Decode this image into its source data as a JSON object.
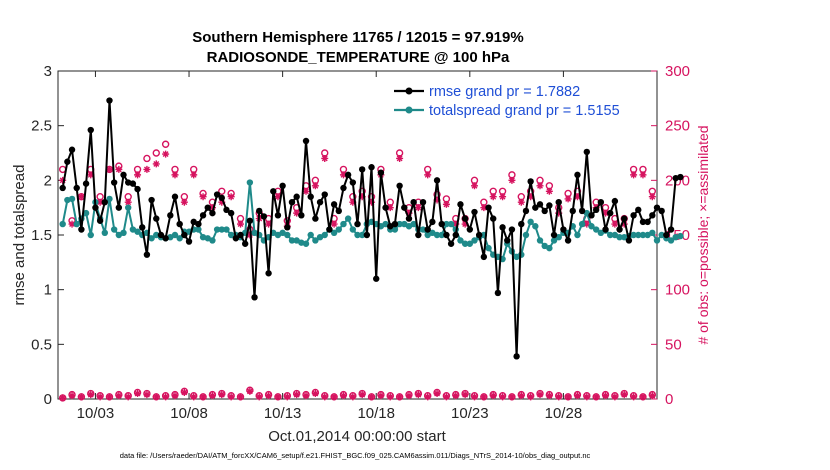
{
  "chart_data": {
    "type": "line",
    "title_line1": "Southern Hemisphere 11765 / 12015 = 97.919%",
    "title_line2": "RADIOSONDE_TEMPERATURE @ 100 hPa",
    "ylabel_left": "rmse and totalspread",
    "ylabel_right": "# of obs: o=possible; ×=assimilated",
    "xlabel": "Oct.01,2014 00:00:00 start",
    "footnote": "data file: /Users/raeder/DAI/ATM_forcXX/CAM6_setup/f.e21.FHIST_BGC.f09_025.CAM6assim.011/Diags_NTrS_2014-10/obs_diag_output.nc",
    "ylim_left": [
      0,
      3
    ],
    "ylim_right": [
      0,
      300
    ],
    "yticks_left": [
      "0",
      "0.5",
      "1",
      "1.5",
      "2",
      "2.5",
      "3"
    ],
    "yticks_right": [
      "0",
      "50",
      "100",
      "150",
      "200",
      "250",
      "300"
    ],
    "xlim": [
      1.0,
      33.0
    ],
    "xticks": [
      {
        "value": 3,
        "label": "10/03"
      },
      {
        "value": 8,
        "label": "10/08"
      },
      {
        "value": 13,
        "label": "10/13"
      },
      {
        "value": 18,
        "label": "10/18"
      },
      {
        "value": 23,
        "label": "10/23"
      },
      {
        "value": 28,
        "label": "10/28"
      }
    ],
    "x_start": 1.25,
    "x_step": 0.25,
    "series": [
      {
        "name": "rmse",
        "legend": "rmse grand pr = 1.7882",
        "color": "#000000",
        "values": [
          1.93,
          2.17,
          2.28,
          1.93,
          1.55,
          1.97,
          2.46,
          1.75,
          1.63,
          1.8,
          2.73,
          1.98,
          1.75,
          2.05,
          1.98,
          1.97,
          1.92,
          1.57,
          1.32,
          1.82,
          1.65,
          1.5,
          1.47,
          1.68,
          1.85,
          1.6,
          1.5,
          1.44,
          1.62,
          1.6,
          1.68,
          1.75,
          1.7,
          1.87,
          1.84,
          1.73,
          1.7,
          1.47,
          1.5,
          1.42,
          1.63,
          0.93,
          1.72,
          1.67,
          1.15,
          1.9,
          1.68,
          1.95,
          1.57,
          1.8,
          1.85,
          1.68,
          2.36,
          1.85,
          1.65,
          1.8,
          1.87,
          1.55,
          1.78,
          1.72,
          1.93,
          2.05,
          1.98,
          1.6,
          2.1,
          1.5,
          2.12,
          1.1,
          2.07,
          1.75,
          1.58,
          1.6,
          1.95,
          1.75,
          1.65,
          1.8,
          1.5,
          1.8,
          1.55,
          1.62,
          2.0,
          1.6,
          1.5,
          1.42,
          1.5,
          1.78,
          1.65,
          1.55,
          1.71,
          1.5,
          1.3,
          1.75,
          1.65,
          0.97,
          1.57,
          1.45,
          1.55,
          0.39,
          1.6,
          1.72,
          1.99,
          1.75,
          1.78,
          1.72,
          1.77,
          1.5,
          1.8,
          1.55,
          1.45,
          1.72,
          2.05,
          1.72,
          2.26,
          1.68,
          1.73,
          1.8,
          1.55,
          1.7,
          1.81,
          1.55,
          1.65,
          1.45,
          1.68,
          1.73,
          1.62,
          1.62,
          1.68,
          1.75,
          1.72,
          1.5,
          1.55,
          2.02,
          2.03
        ]
      },
      {
        "name": "totalspread",
        "legend": "totalspread grand pr = 1.5155",
        "color": "#1f8a8a",
        "values": [
          1.6,
          1.82,
          1.83,
          1.6,
          1.65,
          1.7,
          1.5,
          1.8,
          1.65,
          1.52,
          1.83,
          1.55,
          1.5,
          1.52,
          1.75,
          1.55,
          1.53,
          1.5,
          1.52,
          1.47,
          1.5,
          1.48,
          1.47,
          1.48,
          1.5,
          1.47,
          1.53,
          1.53,
          1.55,
          1.55,
          1.48,
          1.47,
          1.45,
          1.55,
          1.55,
          1.55,
          1.5,
          1.5,
          1.48,
          1.52,
          1.98,
          1.52,
          1.5,
          1.45,
          1.48,
          1.52,
          1.5,
          1.52,
          1.5,
          1.45,
          1.45,
          1.43,
          1.42,
          1.5,
          1.45,
          1.48,
          1.5,
          1.55,
          1.52,
          1.55,
          1.6,
          1.65,
          1.55,
          1.5,
          1.5,
          1.6,
          1.62,
          1.6,
          1.58,
          1.6,
          1.55,
          1.55,
          1.6,
          1.6,
          1.58,
          1.6,
          1.55,
          1.55,
          1.5,
          1.52,
          1.5,
          1.5,
          1.6,
          1.6,
          1.55,
          1.45,
          1.42,
          1.42,
          1.45,
          1.48,
          1.5,
          1.38,
          1.32,
          1.3,
          1.28,
          1.42,
          1.35,
          1.3,
          1.32,
          1.5,
          1.62,
          1.58,
          1.45,
          1.4,
          1.38,
          1.45,
          1.48,
          1.52,
          1.52,
          1.58,
          1.5,
          1.6,
          1.7,
          1.58,
          1.55,
          1.52,
          1.54,
          1.5,
          1.5,
          1.48,
          1.48,
          1.49,
          1.5,
          1.5,
          1.5,
          1.5,
          1.52,
          1.45,
          1.5,
          1.47,
          1.45,
          1.48,
          1.49
        ]
      }
    ],
    "obs_counts": {
      "color": "#d6135f",
      "x_step": 0.5,
      "possible": [
        210,
        163,
        185,
        210,
        185,
        210,
        213,
        185,
        210,
        220,
        225,
        233,
        210,
        185,
        210,
        188,
        180,
        190,
        188,
        165,
        155,
        170,
        165,
        190,
        163,
        175,
        195,
        200,
        225,
        165,
        210,
        185,
        190,
        185,
        210,
        180,
        225,
        175,
        180,
        210,
        187,
        183,
        165,
        165,
        200,
        180,
        190,
        190,
        205,
        185,
        190,
        200,
        195,
        175,
        188,
        190,
        165,
        180,
        175,
        165,
        165,
        210,
        210,
        190,
        205,
        210,
        220,
        175,
        170,
        165,
        190,
        230,
        220,
        185,
        190,
        190
      ],
      "assimilated": [
        200,
        160,
        185,
        205,
        180,
        210,
        210,
        180,
        205,
        210,
        215,
        224,
        205,
        180,
        205,
        185,
        175,
        180,
        185,
        160,
        150,
        165,
        160,
        185,
        158,
        170,
        190,
        195,
        220,
        160,
        205,
        180,
        185,
        180,
        205,
        175,
        220,
        170,
        175,
        205,
        182,
        178,
        160,
        160,
        195,
        175,
        185,
        185,
        200,
        180,
        185,
        195,
        190,
        170,
        183,
        185,
        160,
        175,
        170,
        160,
        160,
        205,
        205,
        185,
        200,
        205,
        215,
        170,
        165,
        160,
        185,
        223,
        215,
        180,
        185,
        185
      ],
      "possible_low": [
        1,
        4,
        2,
        5,
        3,
        2,
        4,
        3,
        6,
        5,
        2,
        3,
        4,
        7,
        3,
        2,
        4,
        5,
        3,
        2,
        8,
        3,
        4,
        2,
        3,
        5,
        4,
        6,
        3,
        2,
        4,
        3,
        5,
        2,
        4,
        3,
        2,
        4,
        5,
        3,
        6,
        3,
        4,
        5,
        3,
        2,
        4,
        3,
        2,
        4,
        3,
        5,
        4,
        3,
        2,
        4,
        3,
        2,
        4,
        3,
        5,
        3,
        2,
        4,
        3,
        2,
        4,
        3,
        5,
        2,
        4,
        3,
        2,
        5,
        3,
        4
      ],
      "assimilated_low": [
        1,
        3,
        2,
        4,
        2,
        2,
        3,
        2,
        5,
        4,
        2,
        2,
        3,
        6,
        2,
        2,
        3,
        4,
        2,
        2,
        7,
        2,
        3,
        2,
        2,
        4,
        3,
        5,
        2,
        2,
        3,
        2,
        4,
        2,
        3,
        2,
        2,
        3,
        4,
        2,
        5,
        2,
        3,
        4,
        2,
        2,
        3,
        2,
        2,
        3,
        2,
        4,
        3,
        2,
        2,
        3,
        2,
        2,
        3,
        2,
        4,
        2,
        2,
        3,
        2,
        2,
        3,
        2,
        4,
        2,
        3,
        2,
        2,
        4,
        2,
        3
      ]
    }
  }
}
